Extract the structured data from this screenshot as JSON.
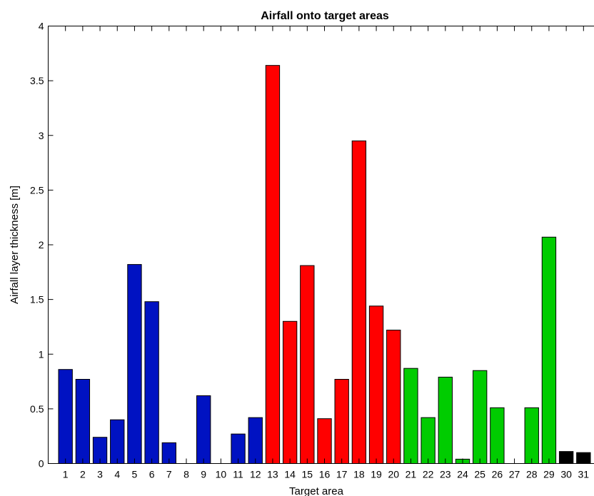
{
  "chart_data": {
    "type": "bar",
    "title": "Airfall onto target areas",
    "xlabel": "Target area",
    "ylabel": "Airfall layer thickness [m]",
    "categories": [
      "1",
      "2",
      "3",
      "4",
      "5",
      "6",
      "7",
      "8",
      "9",
      "10",
      "11",
      "12",
      "13",
      "14",
      "15",
      "16",
      "17",
      "18",
      "19",
      "20",
      "21",
      "22",
      "23",
      "24",
      "25",
      "26",
      "27",
      "28",
      "29",
      "30",
      "31"
    ],
    "values": [
      0.86,
      0.77,
      0.24,
      0.4,
      1.82,
      1.48,
      0.19,
      0,
      0.62,
      0,
      0.27,
      0.42,
      3.64,
      1.3,
      1.81,
      0.41,
      0.77,
      2.95,
      1.44,
      1.22,
      0.87,
      0.42,
      0.79,
      0.04,
      0.85,
      0.51,
      0,
      0.51,
      2.07,
      0.11,
      0.1
    ],
    "colors": [
      "#0012c2",
      "#0012c2",
      "#0012c2",
      "#0012c2",
      "#0012c2",
      "#0012c2",
      "#0012c2",
      "#0012c2",
      "#0012c2",
      "#0012c2",
      "#0012c2",
      "#0012c2",
      "#ff0000",
      "#ff0000",
      "#ff0000",
      "#ff0000",
      "#ff0000",
      "#ff0000",
      "#ff0000",
      "#ff0000",
      "#00cc00",
      "#00cc00",
      "#00cc00",
      "#00cc00",
      "#00cc00",
      "#00cc00",
      "#00cc00",
      "#00cc00",
      "#00cc00",
      "#000000",
      "#000000"
    ],
    "ylim": [
      0,
      4
    ],
    "yticks": [
      0,
      0.5,
      1,
      1.5,
      2,
      2.5,
      3,
      3.5,
      4
    ],
    "ytick_labels": [
      "0",
      "0.5",
      "1",
      "1.5",
      "2",
      "2.5",
      "3",
      "3.5",
      "4"
    ],
    "xlim": [
      0,
      32
    ],
    "grid": false,
    "legend": "none"
  }
}
